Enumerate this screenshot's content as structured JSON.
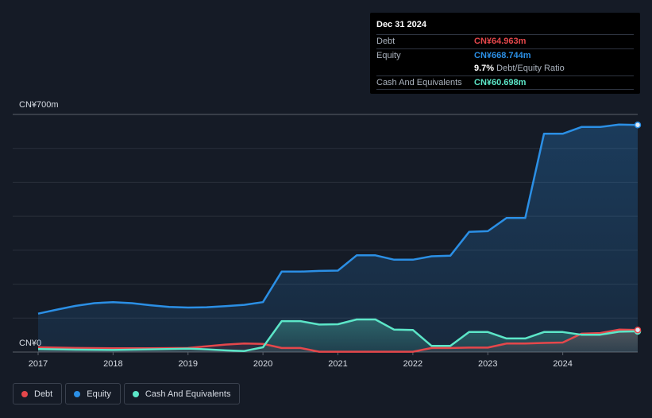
{
  "tooltip": {
    "date": "Dec 31 2024",
    "debt_label": "Debt",
    "debt_value": "CN¥64.963m",
    "equity_label": "Equity",
    "equity_value": "CN¥668.744m",
    "ratio_value": "9.7%",
    "ratio_label": "Debt/Equity Ratio",
    "cash_label": "Cash And Equivalents",
    "cash_value": "CN¥60.698m"
  },
  "legend": {
    "debt": "Debt",
    "equity": "Equity",
    "cash": "Cash And Equivalents"
  },
  "colors": {
    "debt": "#e5474b",
    "equity": "#2b8fe5",
    "cash": "#5ce6c8",
    "background": "#151b26"
  },
  "chart_data": {
    "type": "area",
    "title": "",
    "xlabel": "",
    "ylabel": "",
    "ytick_labels": [
      "CN¥0",
      "CN¥700m"
    ],
    "ylim": [
      0,
      700
    ],
    "xlim": [
      2017.0,
      2025.0
    ],
    "xtick_values": [
      2017,
      2018,
      2019,
      2020,
      2021,
      2022,
      2023,
      2024
    ],
    "xtick_labels": [
      "2017",
      "2018",
      "2019",
      "2020",
      "2021",
      "2022",
      "2023",
      "2024"
    ],
    "series": [
      {
        "name": "Equity",
        "x": [
          2017.0,
          2017.25,
          2017.5,
          2017.75,
          2018.0,
          2018.25,
          2018.5,
          2018.75,
          2019.0,
          2019.25,
          2019.5,
          2019.75,
          2020.0,
          2020.25,
          2020.5,
          2020.75,
          2021.0,
          2021.25,
          2021.5,
          2021.75,
          2022.0,
          2022.25,
          2022.5,
          2022.75,
          2023.0,
          2023.25,
          2023.5,
          2023.75,
          2024.0,
          2024.25,
          2024.5,
          2024.75,
          2025.0
        ],
        "values": [
          113,
          125,
          136,
          144,
          147,
          144,
          138,
          133,
          131,
          132,
          135,
          139,
          147,
          237,
          237,
          239,
          240,
          285,
          285,
          272,
          272,
          282,
          284,
          354,
          356,
          395,
          395,
          643,
          643,
          663,
          663,
          670,
          669
        ]
      },
      {
        "name": "Debt",
        "x": [
          2017.0,
          2017.5,
          2018.0,
          2018.5,
          2019.0,
          2019.25,
          2019.5,
          2019.75,
          2020.0,
          2020.25,
          2020.5,
          2020.75,
          2021.0,
          2021.5,
          2022.0,
          2022.25,
          2022.5,
          2022.75,
          2023.0,
          2023.25,
          2023.5,
          2023.75,
          2024.0,
          2024.25,
          2024.5,
          2024.75,
          2025.0
        ],
        "values": [
          14,
          12,
          11,
          11,
          12,
          17,
          22,
          25,
          24,
          12,
          12,
          1,
          1,
          1,
          1,
          12,
          12,
          13,
          13,
          25,
          25,
          27,
          28,
          54,
          56,
          66,
          65
        ]
      },
      {
        "name": "Cash And Equivalents",
        "x": [
          2017.0,
          2017.5,
          2018.0,
          2018.5,
          2019.0,
          2019.25,
          2019.5,
          2019.75,
          2020.0,
          2020.25,
          2020.5,
          2020.75,
          2021.0,
          2021.25,
          2021.5,
          2021.75,
          2022.0,
          2022.25,
          2022.5,
          2022.75,
          2023.0,
          2023.25,
          2023.5,
          2023.75,
          2024.0,
          2024.25,
          2024.5,
          2024.75,
          2025.0
        ],
        "values": [
          9,
          7,
          6,
          8,
          10,
          8,
          5,
          3,
          14,
          91,
          91,
          81,
          82,
          96,
          96,
          66,
          65,
          18,
          18,
          59,
          59,
          40,
          40,
          59,
          59,
          51,
          51,
          60,
          61
        ]
      }
    ]
  }
}
